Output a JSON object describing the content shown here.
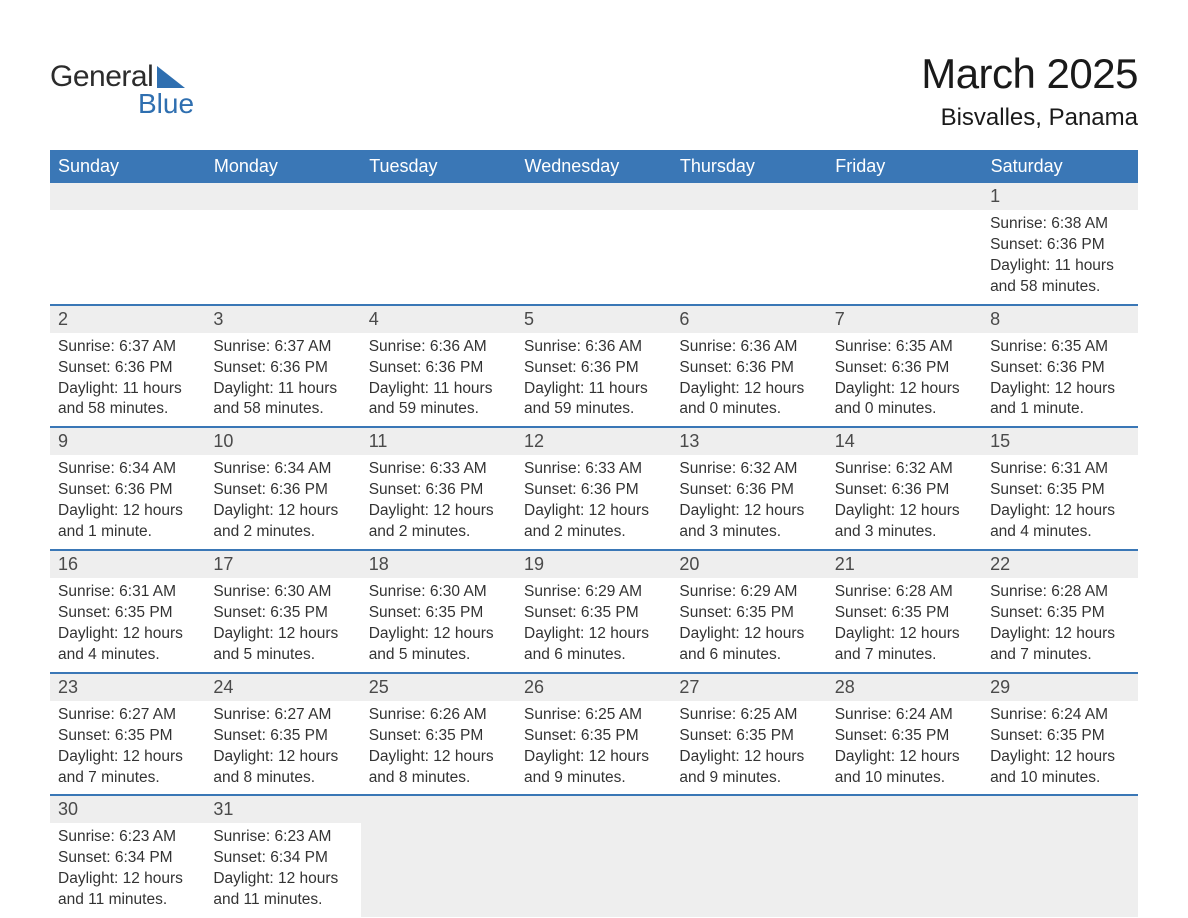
{
  "logo": {
    "word1": "General",
    "word2": "Blue",
    "tri_color": "#2f6fb0"
  },
  "title": "March 2025",
  "subtitle": "Bisvalles, Panama",
  "colors": {
    "header_bg": "#3a77b6",
    "header_text": "#ffffff",
    "daynum_bg": "#eeeeee",
    "border": "#3a77b6",
    "body_text": "#333333"
  },
  "weekdays": [
    "Sunday",
    "Monday",
    "Tuesday",
    "Wednesday",
    "Thursday",
    "Friday",
    "Saturday"
  ],
  "weeks": [
    [
      null,
      null,
      null,
      null,
      null,
      null,
      {
        "n": "1",
        "sr": "Sunrise: 6:38 AM",
        "ss": "Sunset: 6:36 PM",
        "dl": "Daylight: 11 hours and 58 minutes."
      }
    ],
    [
      {
        "n": "2",
        "sr": "Sunrise: 6:37 AM",
        "ss": "Sunset: 6:36 PM",
        "dl": "Daylight: 11 hours and 58 minutes."
      },
      {
        "n": "3",
        "sr": "Sunrise: 6:37 AM",
        "ss": "Sunset: 6:36 PM",
        "dl": "Daylight: 11 hours and 58 minutes."
      },
      {
        "n": "4",
        "sr": "Sunrise: 6:36 AM",
        "ss": "Sunset: 6:36 PM",
        "dl": "Daylight: 11 hours and 59 minutes."
      },
      {
        "n": "5",
        "sr": "Sunrise: 6:36 AM",
        "ss": "Sunset: 6:36 PM",
        "dl": "Daylight: 11 hours and 59 minutes."
      },
      {
        "n": "6",
        "sr": "Sunrise: 6:36 AM",
        "ss": "Sunset: 6:36 PM",
        "dl": "Daylight: 12 hours and 0 minutes."
      },
      {
        "n": "7",
        "sr": "Sunrise: 6:35 AM",
        "ss": "Sunset: 6:36 PM",
        "dl": "Daylight: 12 hours and 0 minutes."
      },
      {
        "n": "8",
        "sr": "Sunrise: 6:35 AM",
        "ss": "Sunset: 6:36 PM",
        "dl": "Daylight: 12 hours and 1 minute."
      }
    ],
    [
      {
        "n": "9",
        "sr": "Sunrise: 6:34 AM",
        "ss": "Sunset: 6:36 PM",
        "dl": "Daylight: 12 hours and 1 minute."
      },
      {
        "n": "10",
        "sr": "Sunrise: 6:34 AM",
        "ss": "Sunset: 6:36 PM",
        "dl": "Daylight: 12 hours and 2 minutes."
      },
      {
        "n": "11",
        "sr": "Sunrise: 6:33 AM",
        "ss": "Sunset: 6:36 PM",
        "dl": "Daylight: 12 hours and 2 minutes."
      },
      {
        "n": "12",
        "sr": "Sunrise: 6:33 AM",
        "ss": "Sunset: 6:36 PM",
        "dl": "Daylight: 12 hours and 2 minutes."
      },
      {
        "n": "13",
        "sr": "Sunrise: 6:32 AM",
        "ss": "Sunset: 6:36 PM",
        "dl": "Daylight: 12 hours and 3 minutes."
      },
      {
        "n": "14",
        "sr": "Sunrise: 6:32 AM",
        "ss": "Sunset: 6:36 PM",
        "dl": "Daylight: 12 hours and 3 minutes."
      },
      {
        "n": "15",
        "sr": "Sunrise: 6:31 AM",
        "ss": "Sunset: 6:35 PM",
        "dl": "Daylight: 12 hours and 4 minutes."
      }
    ],
    [
      {
        "n": "16",
        "sr": "Sunrise: 6:31 AM",
        "ss": "Sunset: 6:35 PM",
        "dl": "Daylight: 12 hours and 4 minutes."
      },
      {
        "n": "17",
        "sr": "Sunrise: 6:30 AM",
        "ss": "Sunset: 6:35 PM",
        "dl": "Daylight: 12 hours and 5 minutes."
      },
      {
        "n": "18",
        "sr": "Sunrise: 6:30 AM",
        "ss": "Sunset: 6:35 PM",
        "dl": "Daylight: 12 hours and 5 minutes."
      },
      {
        "n": "19",
        "sr": "Sunrise: 6:29 AM",
        "ss": "Sunset: 6:35 PM",
        "dl": "Daylight: 12 hours and 6 minutes."
      },
      {
        "n": "20",
        "sr": "Sunrise: 6:29 AM",
        "ss": "Sunset: 6:35 PM",
        "dl": "Daylight: 12 hours and 6 minutes."
      },
      {
        "n": "21",
        "sr": "Sunrise: 6:28 AM",
        "ss": "Sunset: 6:35 PM",
        "dl": "Daylight: 12 hours and 7 minutes."
      },
      {
        "n": "22",
        "sr": "Sunrise: 6:28 AM",
        "ss": "Sunset: 6:35 PM",
        "dl": "Daylight: 12 hours and 7 minutes."
      }
    ],
    [
      {
        "n": "23",
        "sr": "Sunrise: 6:27 AM",
        "ss": "Sunset: 6:35 PM",
        "dl": "Daylight: 12 hours and 7 minutes."
      },
      {
        "n": "24",
        "sr": "Sunrise: 6:27 AM",
        "ss": "Sunset: 6:35 PM",
        "dl": "Daylight: 12 hours and 8 minutes."
      },
      {
        "n": "25",
        "sr": "Sunrise: 6:26 AM",
        "ss": "Sunset: 6:35 PM",
        "dl": "Daylight: 12 hours and 8 minutes."
      },
      {
        "n": "26",
        "sr": "Sunrise: 6:25 AM",
        "ss": "Sunset: 6:35 PM",
        "dl": "Daylight: 12 hours and 9 minutes."
      },
      {
        "n": "27",
        "sr": "Sunrise: 6:25 AM",
        "ss": "Sunset: 6:35 PM",
        "dl": "Daylight: 12 hours and 9 minutes."
      },
      {
        "n": "28",
        "sr": "Sunrise: 6:24 AM",
        "ss": "Sunset: 6:35 PM",
        "dl": "Daylight: 12 hours and 10 minutes."
      },
      {
        "n": "29",
        "sr": "Sunrise: 6:24 AM",
        "ss": "Sunset: 6:35 PM",
        "dl": "Daylight: 12 hours and 10 minutes."
      }
    ],
    [
      {
        "n": "30",
        "sr": "Sunrise: 6:23 AM",
        "ss": "Sunset: 6:34 PM",
        "dl": "Daylight: 12 hours and 11 minutes."
      },
      {
        "n": "31",
        "sr": "Sunrise: 6:23 AM",
        "ss": "Sunset: 6:34 PM",
        "dl": "Daylight: 12 hours and 11 minutes."
      },
      null,
      null,
      null,
      null,
      null
    ]
  ]
}
